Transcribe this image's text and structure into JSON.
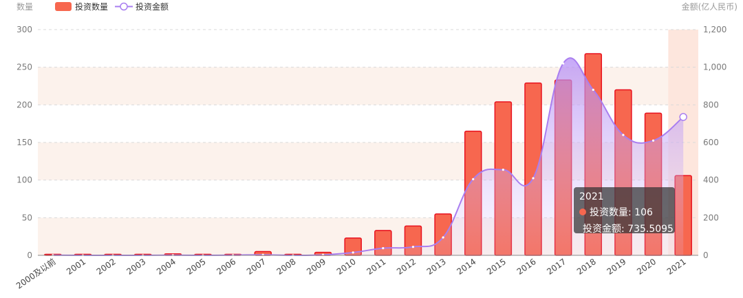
{
  "chart_data": {
    "type": "bar",
    "categories": [
      "2000及以前",
      "2001",
      "2002",
      "2003",
      "2004",
      "2005",
      "2006",
      "2007",
      "2008",
      "2009",
      "2010",
      "2011",
      "2012",
      "2013",
      "2014",
      "2015",
      "2016",
      "2017",
      "2018",
      "2019",
      "2020",
      "2021"
    ],
    "series": [
      {
        "name": "投资数量",
        "type": "bar",
        "axis": "left",
        "values": [
          1,
          0,
          0,
          1,
          2,
          1,
          1,
          5,
          0,
          4,
          23,
          33,
          39,
          55,
          165,
          204,
          229,
          233,
          268,
          220,
          189,
          106
        ]
      },
      {
        "name": "投资金额",
        "type": "line",
        "axis": "right",
        "smooth": true,
        "area": true,
        "values": [
          1,
          0,
          0,
          0,
          1,
          0,
          1,
          3,
          0,
          3,
          15,
          38,
          45,
          95,
          405,
          455,
          410,
          1020,
          880,
          640,
          610,
          735.5095
        ]
      }
    ],
    "ylabel_left": "数量",
    "ylabel_right": "金额(亿人民币)",
    "ylim_left": [
      0,
      300
    ],
    "ylim_right": [
      0,
      1200
    ],
    "yticks_left": [
      "0",
      "50",
      "100",
      "150",
      "200",
      "250",
      "300"
    ],
    "yticks_right": [
      "0",
      "200",
      "400",
      "600",
      "800",
      "1,000",
      "1,200"
    ],
    "grid": true,
    "legend_position": "top-left",
    "highlighted_category": "2021",
    "colors": {
      "bar_fill": "#f7674f",
      "bar_stroke": "#e8101e",
      "line": "#a97ef0",
      "band": "#fcf2ec",
      "highlight": "#fde6dd"
    }
  },
  "tooltip": {
    "title": "2021",
    "rows": [
      {
        "label": "投资数量: 106",
        "color": "#f7674f"
      },
      {
        "label": "投资金额: 735.5095",
        "color": "#a97ef0"
      }
    ]
  }
}
